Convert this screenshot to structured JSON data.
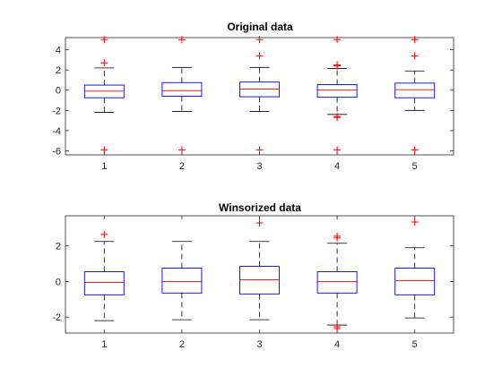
{
  "chart_data": [
    {
      "type": "boxplot",
      "title": "Original data",
      "categories": [
        "1",
        "2",
        "3",
        "4",
        "5"
      ],
      "ylim": [
        -6.4,
        5.2
      ],
      "yticks": [
        -6,
        -4,
        -2,
        0,
        2,
        4
      ],
      "boxes": [
        {
          "whislo": -2.2,
          "q1": -0.75,
          "med": -0.1,
          "q3": 0.5,
          "whishi": 2.2,
          "fliers": [
            5.0,
            2.7,
            -5.9
          ]
        },
        {
          "whislo": -2.1,
          "q1": -0.6,
          "med": -0.05,
          "q3": 0.75,
          "whishi": 2.25,
          "fliers": [
            5.0,
            -5.9
          ]
        },
        {
          "whislo": -2.1,
          "q1": -0.65,
          "med": 0.1,
          "q3": 0.8,
          "whishi": 2.25,
          "fliers": [
            5.0,
            3.4,
            -5.9
          ]
        },
        {
          "whislo": -2.4,
          "q1": -0.7,
          "med": 0.0,
          "q3": 0.55,
          "whishi": 2.15,
          "fliers": [
            5.0,
            2.5,
            2.4,
            -2.6,
            -2.7,
            -5.9
          ]
        },
        {
          "whislo": -2.0,
          "q1": -0.75,
          "med": 0.05,
          "q3": 0.7,
          "whishi": 1.9,
          "fliers": [
            5.0,
            3.4,
            -5.9
          ]
        }
      ]
    },
    {
      "type": "boxplot",
      "title": "Winsorized data",
      "categories": [
        "1",
        "2",
        "3",
        "4",
        "5"
      ],
      "ylim": [
        -2.9,
        3.7
      ],
      "yticks": [
        -2,
        0,
        2
      ],
      "boxes": [
        {
          "whislo": -2.2,
          "q1": -0.75,
          "med": -0.05,
          "q3": 0.55,
          "whishi": 2.25,
          "fliers": [
            2.65
          ]
        },
        {
          "whislo": -2.15,
          "q1": -0.65,
          "med": 0.0,
          "q3": 0.75,
          "whishi": 2.25,
          "fliers": []
        },
        {
          "whislo": -2.15,
          "q1": -0.7,
          "med": 0.1,
          "q3": 0.85,
          "whishi": 2.25,
          "fliers": [
            3.3
          ]
        },
        {
          "whislo": -2.45,
          "q1": -0.65,
          "med": 0.0,
          "q3": 0.55,
          "whishi": 2.15,
          "fliers": [
            2.55,
            2.45,
            -2.55,
            -2.65
          ]
        },
        {
          "whislo": -2.05,
          "q1": -0.75,
          "med": 0.05,
          "q3": 0.75,
          "whishi": 1.9,
          "fliers": [
            3.35
          ]
        }
      ]
    }
  ],
  "colors": {
    "box": "#0000ff",
    "median": "#ff0000",
    "whisker": "#000000",
    "flier": "#ff0000"
  }
}
